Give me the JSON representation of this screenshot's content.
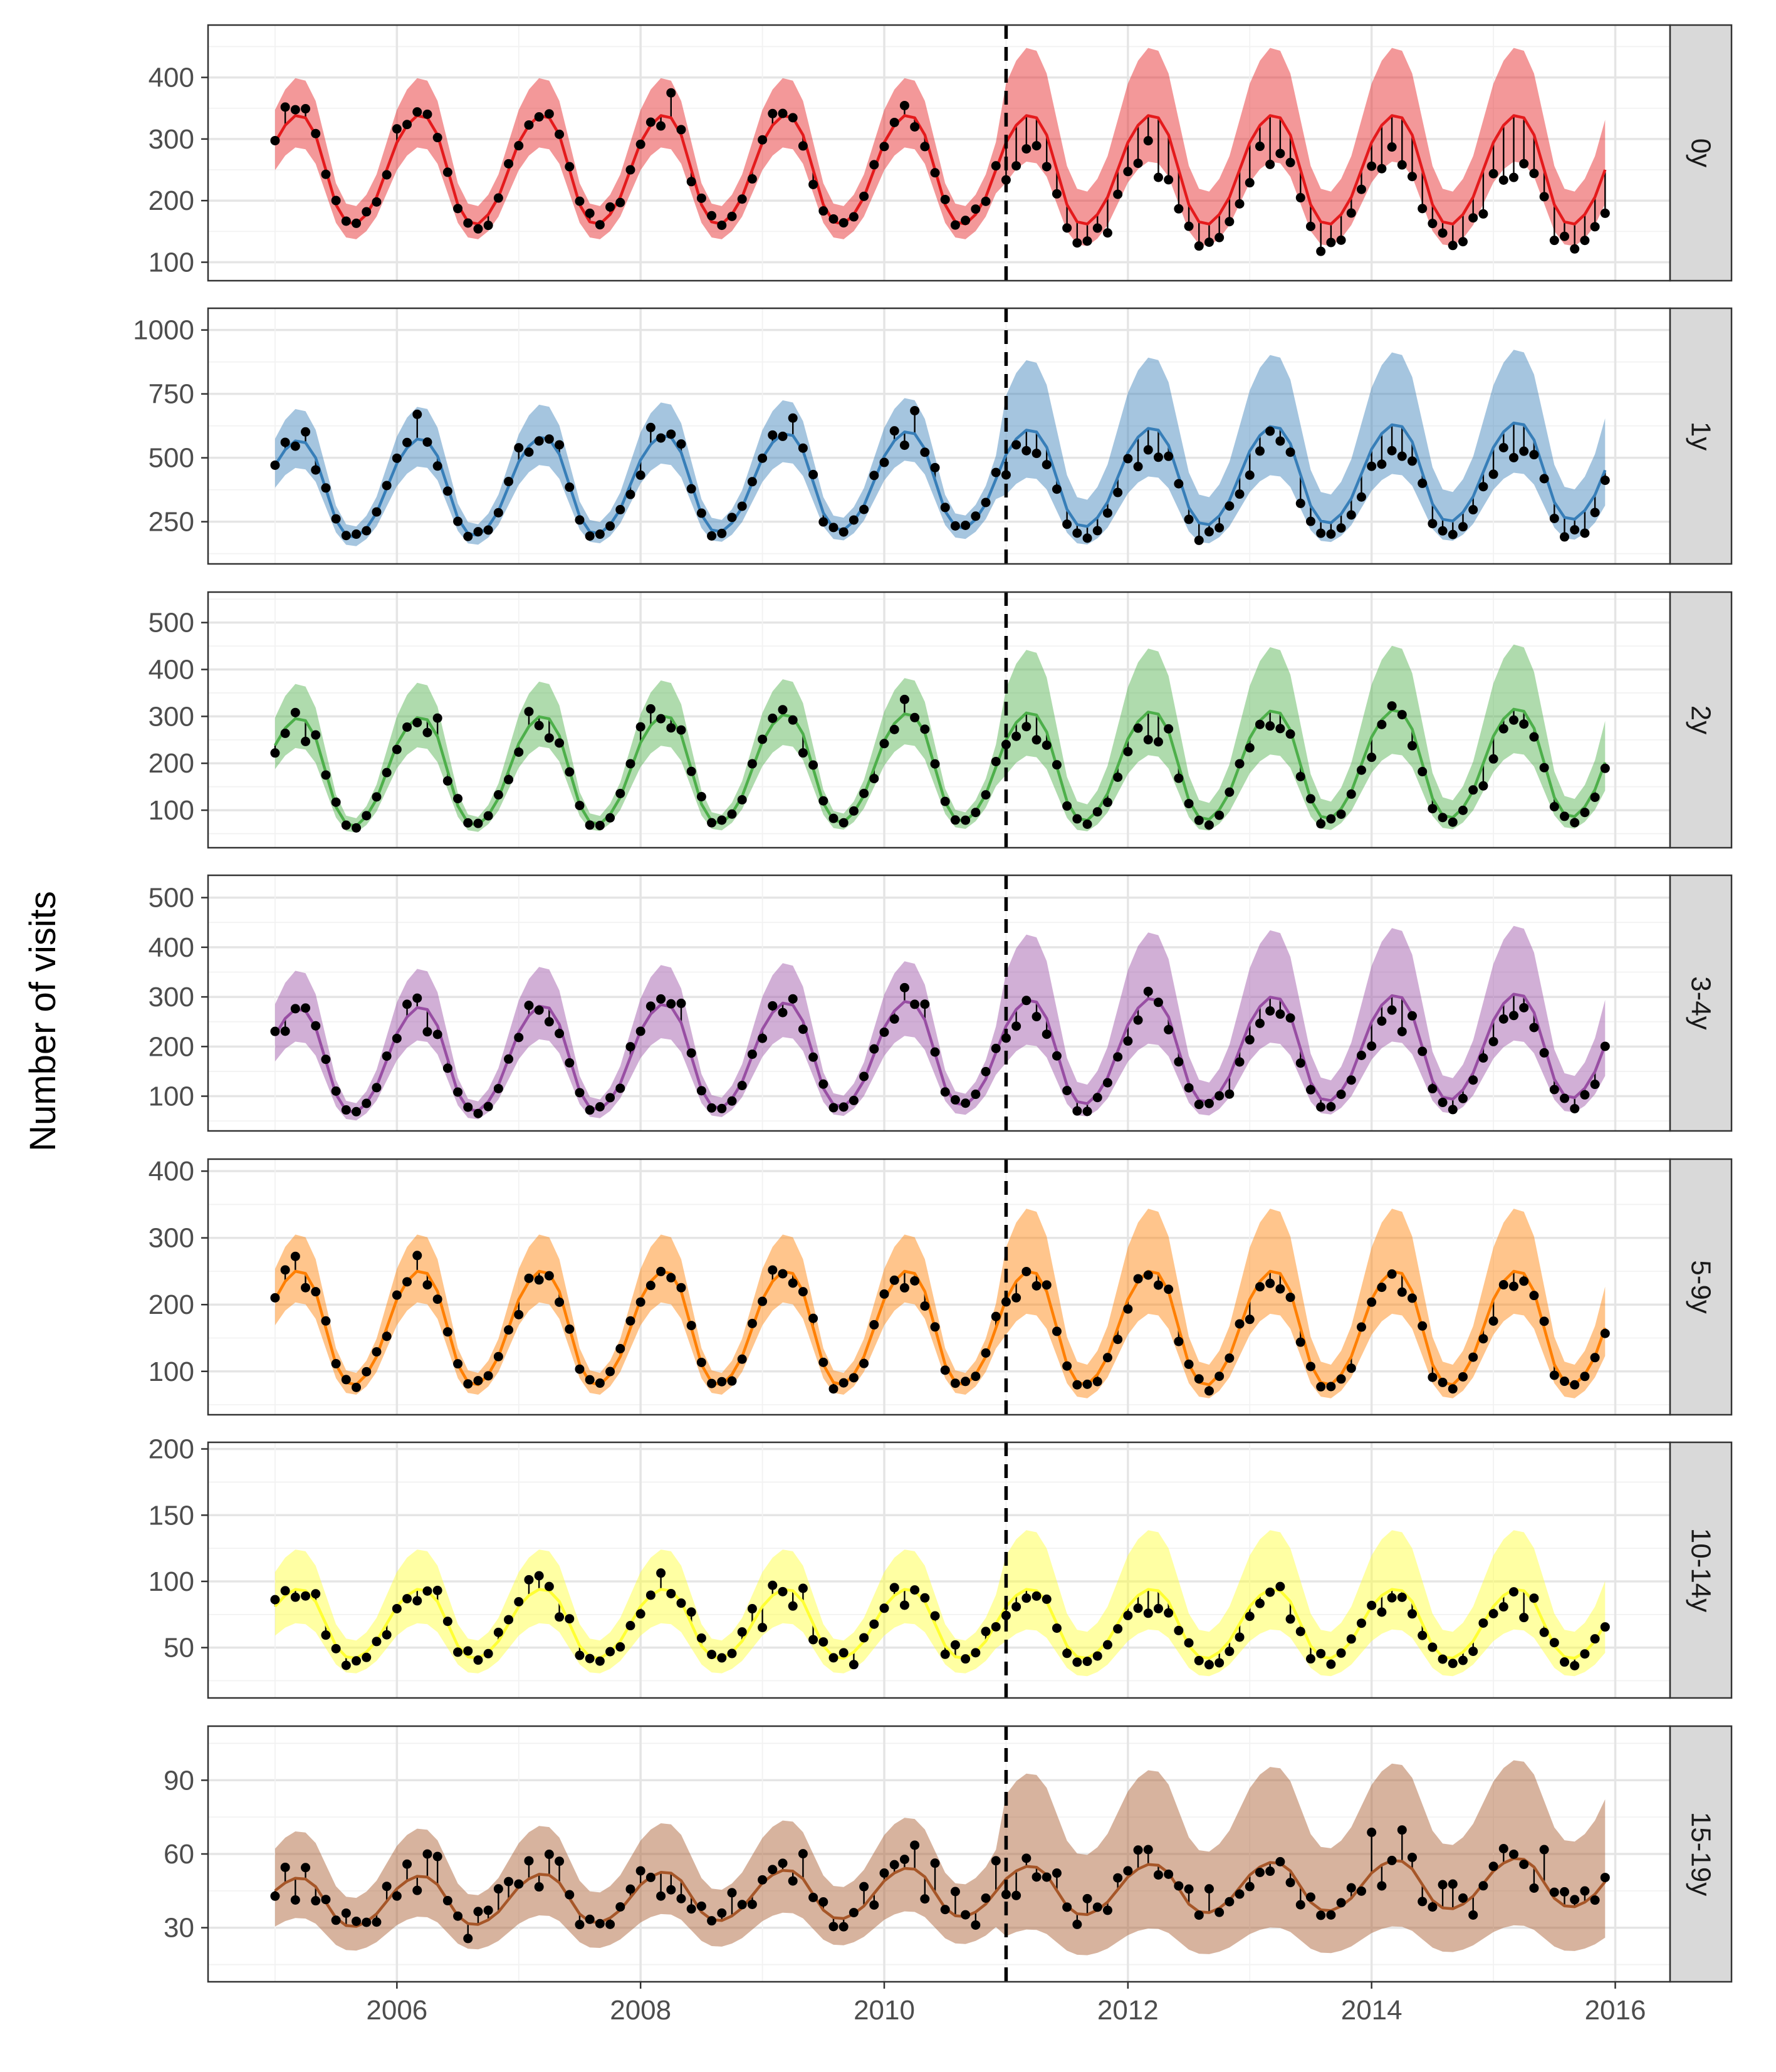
{
  "chart_data": {
    "type": "line",
    "ylabel": "Number of visits",
    "xlabel": "",
    "xlim": [
      2004.45,
      2016.45
    ],
    "x_ticks": [
      2006,
      2008,
      2010,
      2012,
      2014,
      2016
    ],
    "x_tick_labels": [
      "2006",
      "2008",
      "2010",
      "2012",
      "2014",
      "2016"
    ],
    "vline_x": 2011.0,
    "time_range": [
      2005.0,
      2015.9167
    ],
    "fit_start": 2005.0,
    "panels": [
      {
        "label": "0y",
        "color": "#e41a1c",
        "ylim": [
          70,
          485
        ],
        "yticks": [
          100,
          200,
          300,
          400
        ],
        "tick_labels": [
          "100",
          "200",
          "300",
          "400"
        ],
        "base": 250,
        "amp": 88,
        "trend": 0,
        "peak_month": 2,
        "band_pre": 0.18,
        "band_post": 0.26,
        "obs_scale_post": 0.8,
        "noise": 0.12
      },
      {
        "label": "1y",
        "color": "#377eb8",
        "ylim": [
          85,
          1085
        ],
        "yticks": [
          250,
          500,
          750,
          1000
        ],
        "tick_labels": [
          "250",
          "500",
          "750",
          "1000"
        ],
        "base": 375,
        "amp": 190,
        "trend": 7,
        "peak_month": 2,
        "band_pre": 0.22,
        "band_post": 0.36,
        "obs_scale_post": 0.85,
        "noise": 0.14
      },
      {
        "label": "2y",
        "color": "#4daf4a",
        "ylim": [
          20,
          565
        ],
        "yticks": [
          100,
          200,
          300,
          400,
          500
        ],
        "tick_labels": [
          "100",
          "200",
          "300",
          "400",
          "500"
        ],
        "base": 180,
        "amp": 115,
        "trend": 2,
        "peak_month": 2,
        "band_pre": 0.25,
        "band_post": 0.35,
        "obs_scale_post": 0.92,
        "noise": 0.15
      },
      {
        "label": "3-4y",
        "color": "#984ea3",
        "ylim": [
          30,
          545
        ],
        "yticks": [
          100,
          200,
          300,
          400,
          500
        ],
        "tick_labels": [
          "100",
          "200",
          "300",
          "400",
          "500"
        ],
        "base": 170,
        "amp": 105,
        "trend": 3,
        "peak_month": 2,
        "band_pre": 0.28,
        "band_post": 0.36,
        "obs_scale_post": 0.9,
        "noise": 0.15
      },
      {
        "label": "5-9y",
        "color": "#ff7f00",
        "ylim": [
          35,
          418
        ],
        "yticks": [
          100,
          200,
          300,
          400
        ],
        "tick_labels": [
          "100",
          "200",
          "300",
          "400"
        ],
        "base": 165,
        "amp": 85,
        "trend": 0,
        "peak_month": 2,
        "band_pre": 0.22,
        "band_post": 0.3,
        "obs_scale_post": 0.95,
        "noise": 0.12
      },
      {
        "label": "10-14y",
        "color": "#ffff33",
        "ylim": [
          12,
          205
        ],
        "yticks": [
          50,
          100,
          150,
          200
        ],
        "tick_labels": [
          "50",
          "100",
          "150",
          "200"
        ],
        "base": 68,
        "amp": 26,
        "trend": 0,
        "peak_month": 2,
        "band_pre": 0.32,
        "band_post": 0.38,
        "obs_scale_post": 0.92,
        "noise": 0.18
      },
      {
        "label": "15-19y",
        "color": "#a65628",
        "ylim": [
          8,
          112
        ],
        "yticks": [
          30,
          60,
          90
        ],
        "tick_labels": [
          "30",
          "60",
          "90"
        ],
        "base": 40,
        "amp": 10,
        "trend": 0.8,
        "peak_month": 2,
        "band_pre": 0.38,
        "band_post": 0.55,
        "obs_scale_post": 1.0,
        "noise": 0.28
      }
    ]
  }
}
